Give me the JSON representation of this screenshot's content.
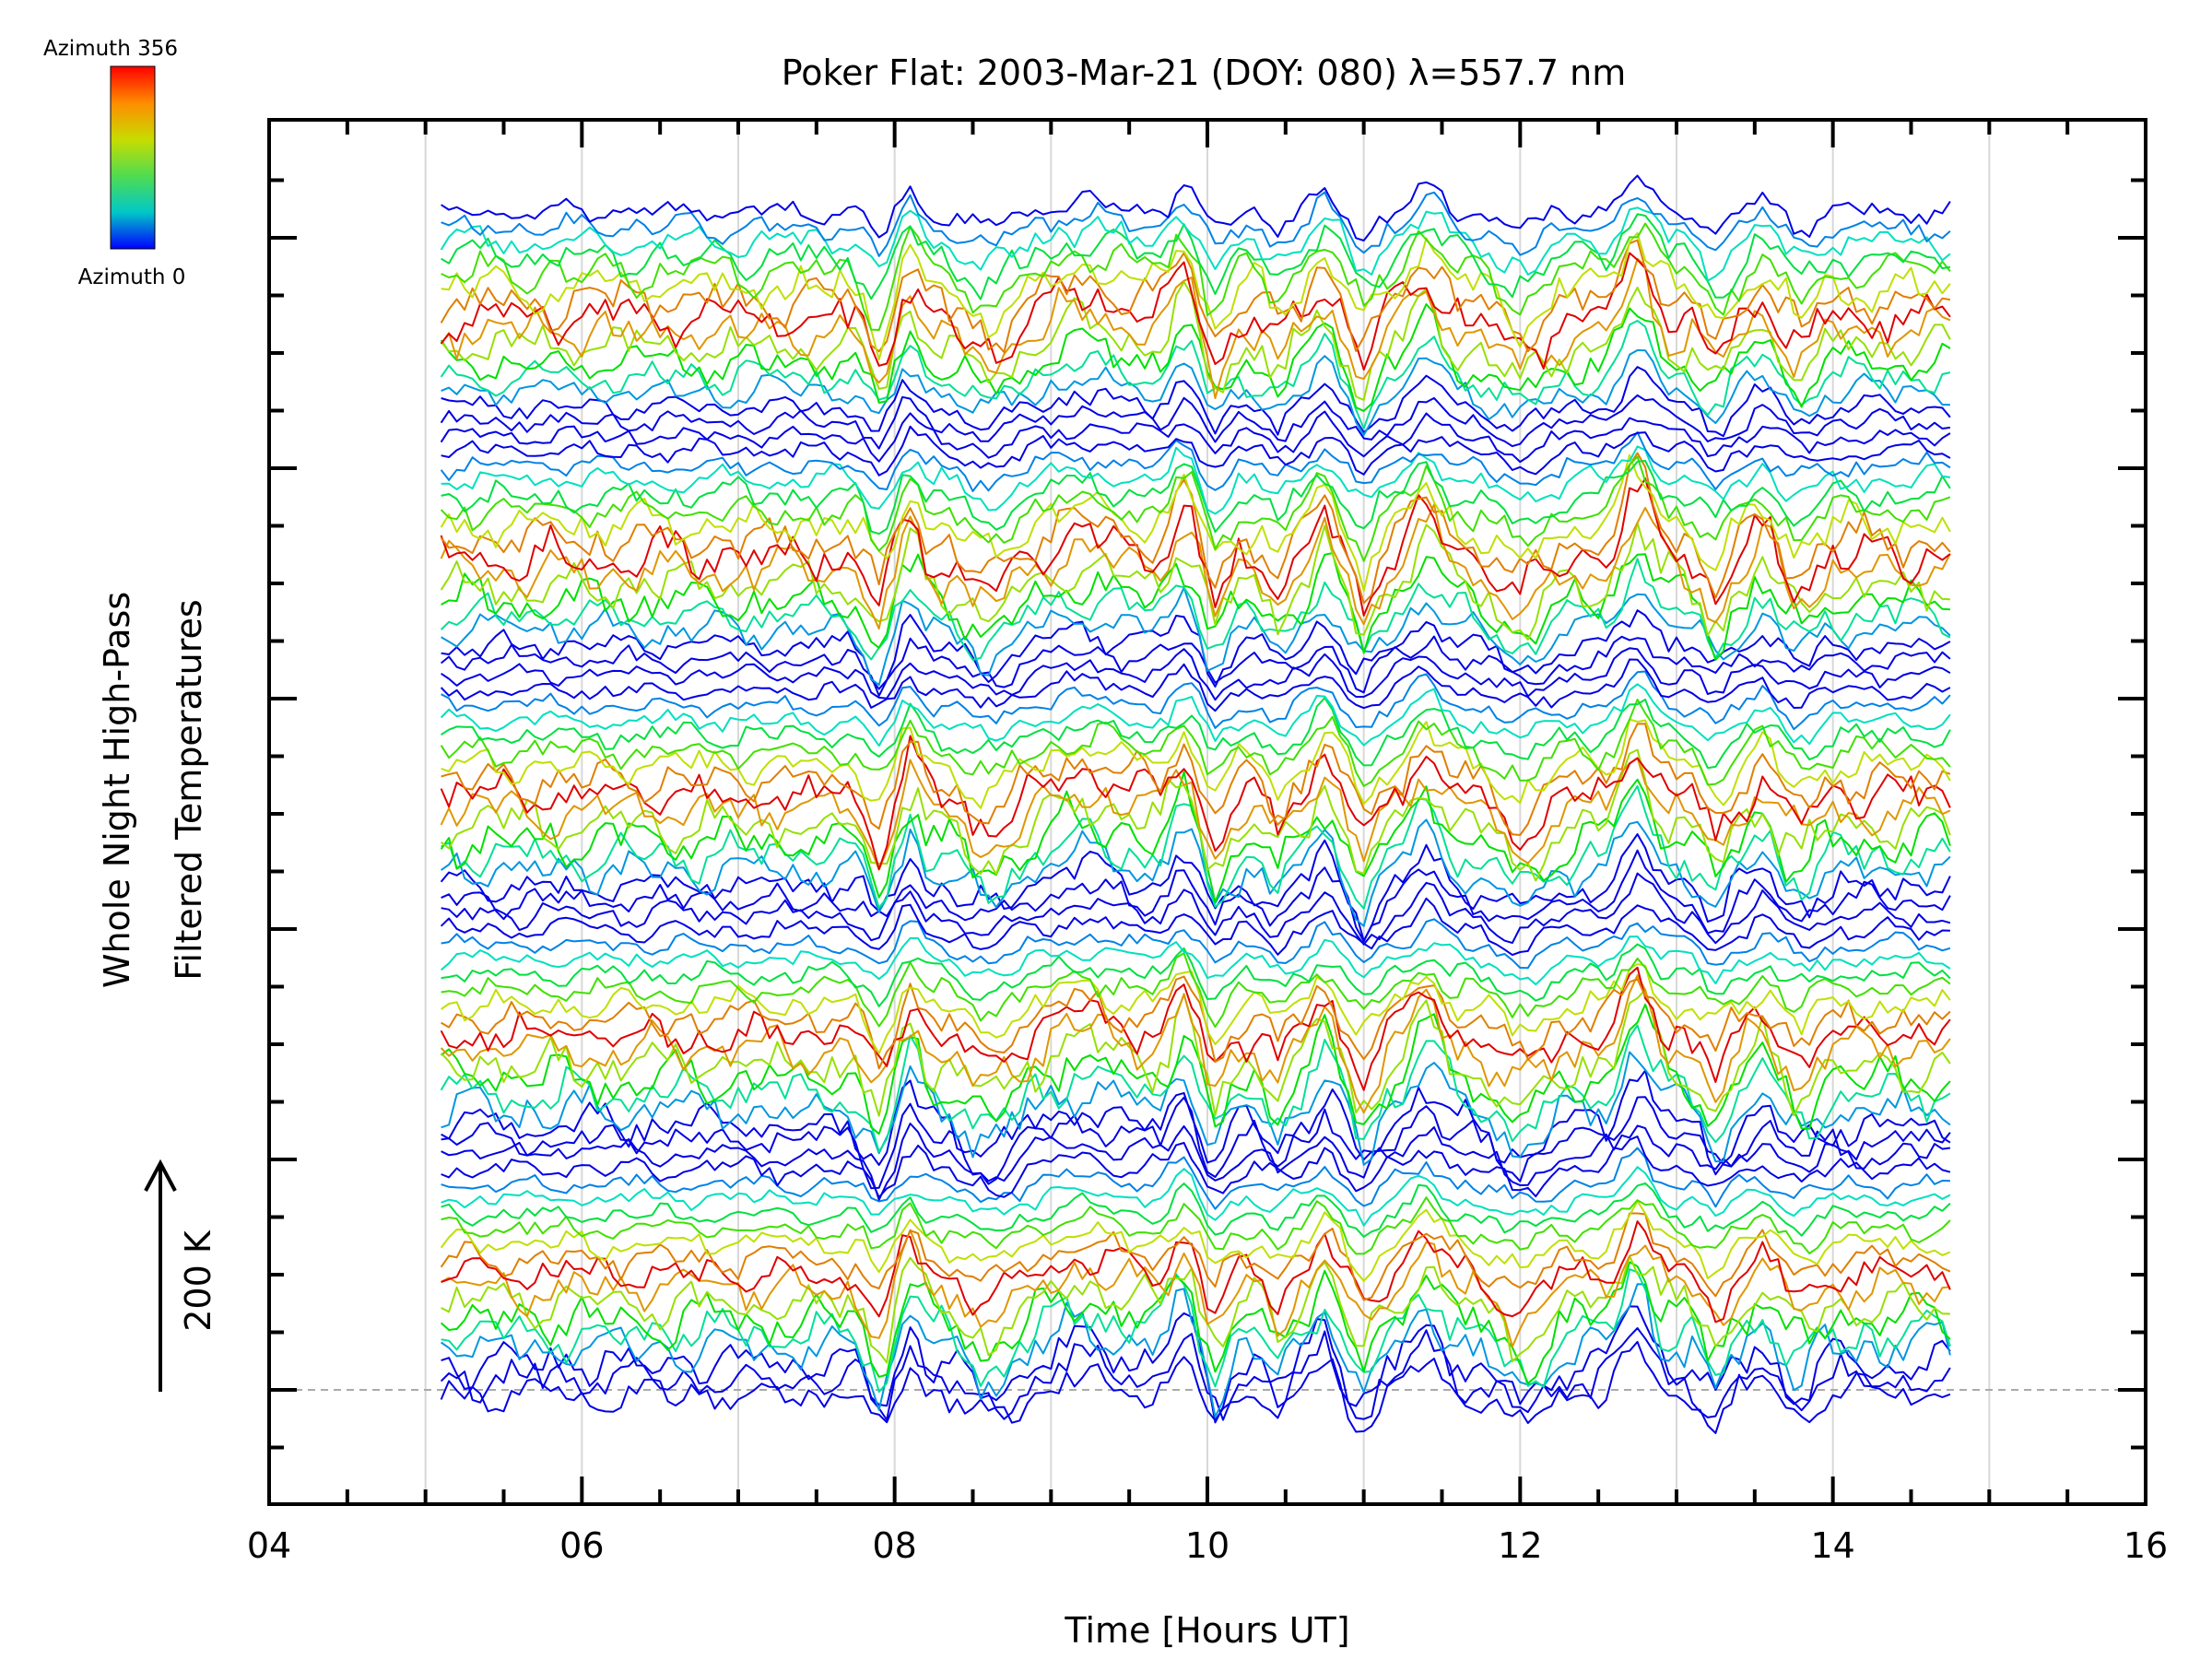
{
  "chart_data": {
    "type": "line",
    "title": "Poker Flat: 2003-Mar-21 (DOY: 080) λ=557.7 nm",
    "xlabel": "Time [Hours UT]",
    "ylabel_line1": "Whole Night High-Pass",
    "ylabel_line2": "Filtered Temperatures",
    "xlim": [
      4,
      16
    ],
    "x_ticks": [
      "04",
      "06",
      "08",
      "10",
      "12",
      "14",
      "16"
    ],
    "x_range_of_data": [
      5.1,
      14.75
    ],
    "grid_x": [
      5,
      6,
      7,
      8,
      9,
      10,
      11,
      12,
      13,
      14,
      15
    ],
    "scale_bar_label": "200 K",
    "colorbar": {
      "top_label": "Azimuth 356",
      "bottom_label": "Azimuth 0",
      "colors": [
        "#ff0000",
        "#ff8c00",
        "#c8dc00",
        "#50dc50",
        "#00c8c8",
        "#0000ff"
      ]
    },
    "series_count": 80,
    "traces_per_cycle": 16,
    "features": [
      {
        "t": 7.9,
        "amp": -1.6,
        "w": 0.09
      },
      {
        "t": 8.1,
        "amp": 1.3,
        "w": 0.08
      },
      {
        "t": 8.6,
        "amp": -1.1,
        "w": 0.2
      },
      {
        "t": 9.2,
        "amp": 0.7,
        "w": 0.25
      },
      {
        "t": 9.85,
        "amp": 1.5,
        "w": 0.1
      },
      {
        "t": 10.05,
        "amp": -1.4,
        "w": 0.09
      },
      {
        "t": 10.45,
        "amp": -0.9,
        "w": 0.08
      },
      {
        "t": 10.75,
        "amp": 1.3,
        "w": 0.09
      },
      {
        "t": 11.0,
        "amp": -1.5,
        "w": 0.1
      },
      {
        "t": 11.4,
        "amp": 1.5,
        "w": 0.12
      },
      {
        "t": 12.0,
        "amp": -1.2,
        "w": 0.2
      },
      {
        "t": 12.75,
        "amp": 2.0,
        "w": 0.12
      },
      {
        "t": 13.25,
        "amp": -1.3,
        "w": 0.1
      },
      {
        "t": 13.55,
        "amp": 0.7,
        "w": 0.08
      },
      {
        "t": 13.8,
        "amp": -0.9,
        "w": 0.12
      }
    ]
  }
}
